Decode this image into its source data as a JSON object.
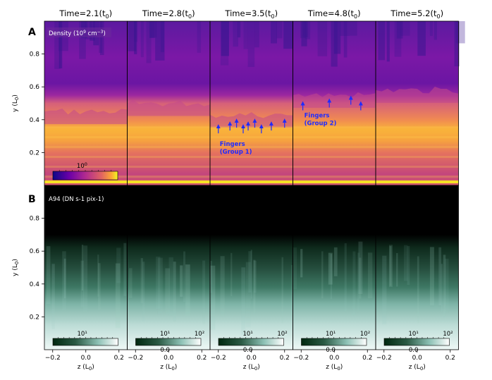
{
  "chart_data": {
    "type": "heatmap",
    "panel_labels": [
      "A",
      "B"
    ],
    "columns": [
      {
        "title": "Time=2.1(t",
        "sub": "0",
        "close": ")"
      },
      {
        "title": "Time=2.8(t",
        "sub": "0",
        "close": ")"
      },
      {
        "title": "Time=3.5(t",
        "sub": "0",
        "close": ")"
      },
      {
        "title": "Time=4.8(t",
        "sub": "0",
        "close": ")"
      },
      {
        "title": "Time=5.2(t",
        "sub": "0",
        "close": ")"
      }
    ],
    "rows": [
      {
        "name": "density",
        "label": "Density (10",
        "label_sup": "9",
        "label_unit": " cm",
        "label_unit_sup": "−3",
        "label_close": ")",
        "colormap": "plasma",
        "colorbar_tick": "10",
        "colorbar_tick_sup": "0",
        "colorbar_ticks": [
          "10⁰"
        ],
        "horizontal_bands_y": [
          0.36,
          0.3,
          0.24,
          0.18,
          0.12,
          0.06
        ],
        "interface_y": [
          0.45,
          0.5,
          0.43,
          0.55,
          0.58
        ]
      },
      {
        "name": "A94",
        "label": "A94 (DN s-1 pix-1)",
        "colormap": "bone-green",
        "colorbar_ticks_top": [
          "10¹",
          "10²"
        ],
        "colorbar_ticks_bottom": [
          "0.0"
        ],
        "emission_top_y": [
          0.65,
          0.62,
          0.62,
          0.68,
          0.65
        ]
      }
    ],
    "annotations": [
      {
        "panel": 2,
        "line1": "Fingers",
        "line2": "(Group 1)",
        "arrow_z": [
          -0.2,
          -0.13,
          -0.09,
          -0.05,
          -0.02,
          0.02,
          0.06,
          0.12,
          0.2
        ],
        "arrow_y": 0.36
      },
      {
        "panel": 3,
        "line1": "Fingers",
        "line2": "(Group 2)",
        "arrow_z": [
          -0.19,
          -0.03,
          0.1,
          0.16
        ],
        "arrow_y": 0.5
      }
    ],
    "xlabel": "z (L",
    "xlabel_sub": "0",
    "xlabel_close": ")",
    "ylabel": "y (L",
    "ylabel_sub": "0",
    "ylabel_close": ")",
    "xlim": [
      -0.25,
      0.25
    ],
    "ylim": [
      0.0,
      1.0
    ],
    "xticks": [
      "−0.2",
      "0.0",
      "0.2"
    ],
    "yticks": [
      "0.2",
      "0.4",
      "0.6",
      "0.8"
    ],
    "ytick_values": [
      0.2,
      0.4,
      0.6,
      0.8
    ],
    "xtick_values": [
      -0.2,
      0.0,
      0.2
    ]
  }
}
